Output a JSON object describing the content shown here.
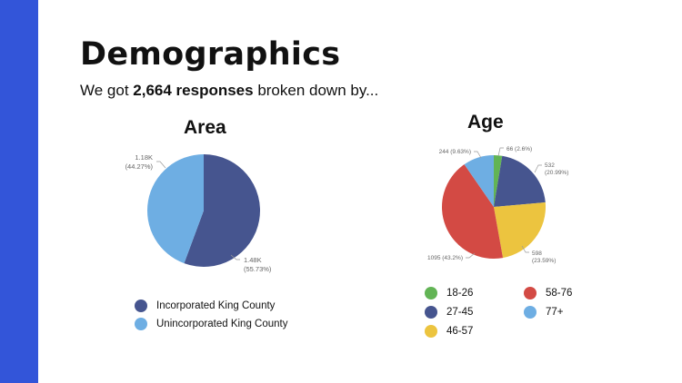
{
  "page": {
    "title": "Demographics",
    "subtitle_pre": "We got ",
    "subtitle_bold": "2,664 responses",
    "subtitle_post": " broken down by..."
  },
  "colors": {
    "accent_bar": "#3355d9"
  },
  "chart_data": [
    {
      "type": "pie",
      "title": "Area",
      "slices": [
        {
          "name": "Incorporated King County",
          "value": 1480,
          "label_value": "1.48K",
          "label_pct": "(55.73%)",
          "percent": 55.73,
          "color": "#46558f"
        },
        {
          "name": "Unincorporated King County",
          "value": 1180,
          "label_value": "1.18K",
          "label_pct": "(44.27%)",
          "percent": 44.27,
          "color": "#6eaee3"
        }
      ],
      "legend_position": "bottom"
    },
    {
      "type": "pie",
      "title": "Age",
      "slices": [
        {
          "name": "18-26",
          "value": 66,
          "label_value": "66",
          "label_pct": "(2.6%)",
          "percent": 2.6,
          "color": "#62b455"
        },
        {
          "name": "27-45",
          "value": 532,
          "label_value": "532",
          "label_pct": "(20.99%)",
          "percent": 20.99,
          "color": "#46558f"
        },
        {
          "name": "46-57",
          "value": 598,
          "label_value": "598",
          "label_pct": "(23.59%)",
          "percent": 23.59,
          "color": "#ecc43f"
        },
        {
          "name": "58-76",
          "value": 1095,
          "label_value": "1095",
          "label_pct": "(43.2%)",
          "percent": 43.2,
          "color": "#d34a44"
        },
        {
          "name": "77+",
          "value": 244,
          "label_value": "244",
          "label_pct": "(9.63%)",
          "percent": 9.63,
          "color": "#6eaee3"
        }
      ],
      "legend_position": "bottom"
    }
  ]
}
